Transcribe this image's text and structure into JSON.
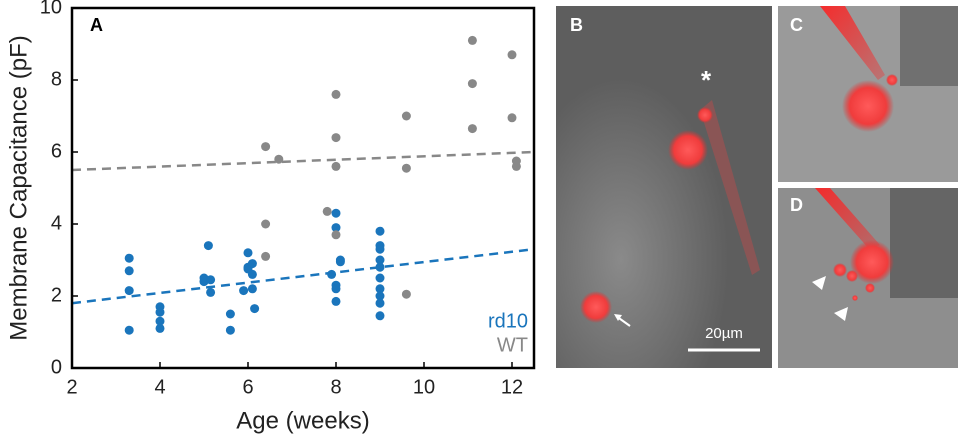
{
  "chart_data": {
    "type": "scatter",
    "panel_label": "A",
    "xlabel": "Age (weeks)",
    "ylabel": "Membrane Capacitance (pF)",
    "xlim": [
      2,
      12.5
    ],
    "ylim": [
      0,
      10
    ],
    "xticks": [
      2,
      4,
      6,
      8,
      10,
      12
    ],
    "yticks": [
      0,
      2,
      4,
      6,
      8,
      10
    ],
    "series": [
      {
        "name": "rd10",
        "color": "#1a75bc",
        "x": [
          3.3,
          3.3,
          3.3,
          3.3,
          4.0,
          4.0,
          4.0,
          4.0,
          5.0,
          5.0,
          5.1,
          5.15,
          5.15,
          5.6,
          5.6,
          5.9,
          6.0,
          6.0,
          6.0,
          6.1,
          6.1,
          6.1,
          6.15,
          7.9,
          8.0,
          8.0,
          8.0,
          8.0,
          8.0,
          8.1,
          8.1,
          9.0,
          9.0,
          9.0,
          9.0,
          9.0,
          9.0,
          9.0,
          9.0,
          9.0,
          9.0
        ],
        "values": [
          3.05,
          2.7,
          2.15,
          1.05,
          1.7,
          1.55,
          1.3,
          1.1,
          2.4,
          2.5,
          3.4,
          2.45,
          2.1,
          1.5,
          1.05,
          2.15,
          3.2,
          2.8,
          2.75,
          2.9,
          2.6,
          2.2,
          1.65,
          2.6,
          4.3,
          3.9,
          2.3,
          2.2,
          1.85,
          3.0,
          2.95,
          3.8,
          3.4,
          3.3,
          3.0,
          2.8,
          2.5,
          2.2,
          1.8,
          1.45,
          2.0
        ]
      },
      {
        "name": "WT",
        "color": "#888888",
        "x": [
          6.4,
          6.7,
          6.4,
          6.4,
          7.8,
          8.0,
          8.0,
          8.0,
          8.0,
          9.6,
          9.6,
          9.6,
          11.1,
          11.1,
          11.1,
          12.0,
          12.0,
          12.1,
          12.1
        ],
        "values": [
          6.15,
          5.8,
          4.0,
          3.1,
          4.35,
          7.6,
          6.4,
          5.6,
          3.7,
          7.0,
          5.55,
          2.05,
          9.1,
          7.9,
          6.65,
          8.7,
          6.95,
          5.75,
          5.6
        ]
      }
    ],
    "trends": [
      {
        "color": "#1a75bc",
        "x": [
          2,
          12.5
        ],
        "values": [
          1.8,
          3.3
        ]
      },
      {
        "color": "#888888",
        "x": [
          2,
          12.5
        ],
        "values": [
          5.5,
          6.0
        ]
      }
    ]
  },
  "images": {
    "B": {
      "label": "B",
      "marker": "*",
      "scale_bar": "20µm"
    },
    "C": {
      "label": "C"
    },
    "D": {
      "label": "D"
    }
  }
}
